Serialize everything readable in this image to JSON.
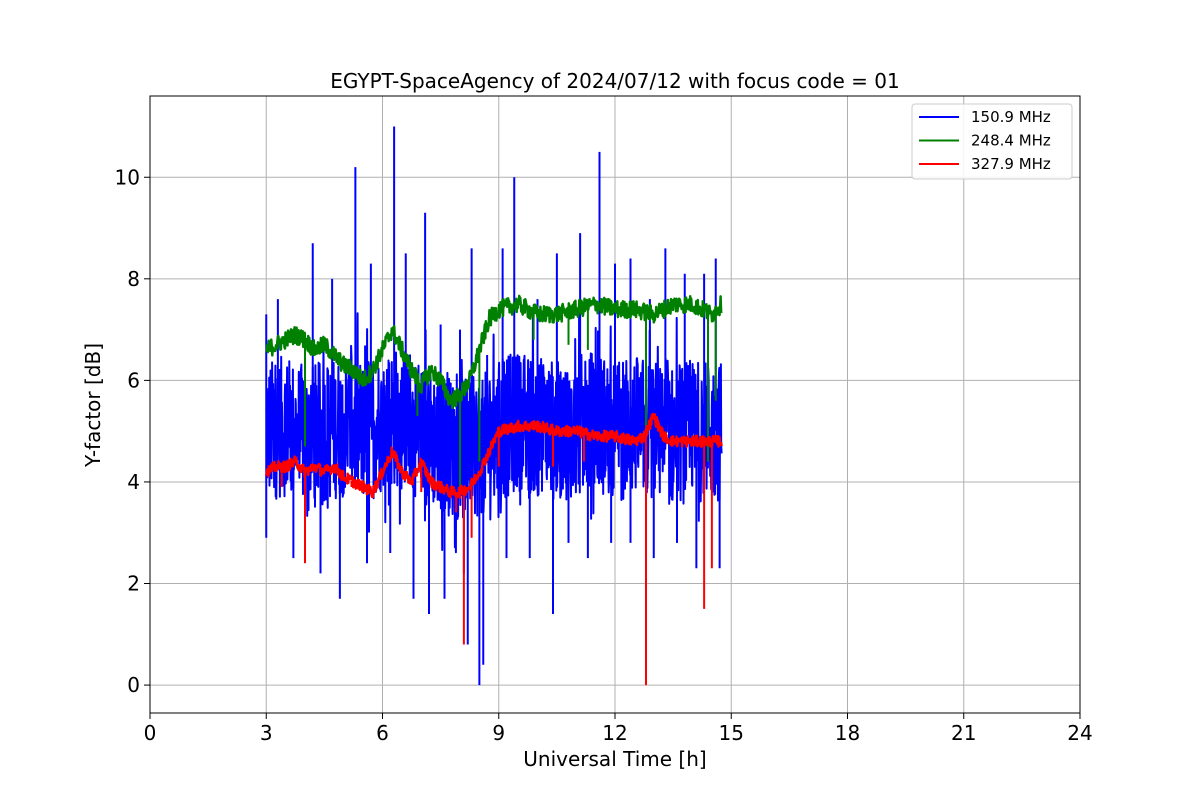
{
  "chart_data": {
    "type": "line",
    "title": "EGYPT-SpaceAgency of 2024/07/12 with focus code = 01",
    "xlabel": "Universal Time [h]",
    "ylabel": "Y-factor [dB]",
    "xlim": [
      0,
      24
    ],
    "ylim": [
      -0.55,
      11.6
    ],
    "xticks": [
      0,
      3,
      6,
      9,
      12,
      15,
      18,
      21,
      24
    ],
    "yticks": [
      0,
      2,
      4,
      6,
      8,
      10
    ],
    "grid": true,
    "legend_position": "top-right",
    "series": [
      {
        "name": "150.9 MHz",
        "color": "#0000ff",
        "x": [
          3.0,
          3.5,
          4.0,
          4.5,
          5.0,
          5.5,
          6.0,
          6.5,
          7.0,
          7.5,
          8.0,
          8.5,
          9.0,
          9.5,
          10.0,
          10.5,
          11.0,
          11.5,
          12.0,
          12.5,
          13.0,
          13.5,
          14.0,
          14.5,
          14.75
        ],
        "y": [
          5.0,
          5.1,
          4.9,
          5.0,
          5.1,
          5.0,
          5.2,
          5.3,
          5.0,
          4.8,
          4.6,
          4.7,
          5.0,
          5.2,
          5.1,
          5.0,
          5.1,
          5.2,
          5.0,
          5.1,
          5.0,
          4.9,
          5.0,
          5.0,
          5.0
        ],
        "spikes_high": [
          [
            3.0,
            7.3
          ],
          [
            3.3,
            7.6
          ],
          [
            4.2,
            8.7
          ],
          [
            4.7,
            8.0
          ],
          [
            5.3,
            10.2
          ],
          [
            5.7,
            8.3
          ],
          [
            6.3,
            11.0
          ],
          [
            6.6,
            8.5
          ],
          [
            7.1,
            9.3
          ],
          [
            7.5,
            7.1
          ],
          [
            8.0,
            7.0
          ],
          [
            8.3,
            8.6
          ],
          [
            8.7,
            6.5
          ],
          [
            9.1,
            8.6
          ],
          [
            9.4,
            10.0
          ],
          [
            10.0,
            7.6
          ],
          [
            10.5,
            8.5
          ],
          [
            11.1,
            8.9
          ],
          [
            11.6,
            10.5
          ],
          [
            12.0,
            8.3
          ],
          [
            12.4,
            8.4
          ],
          [
            12.9,
            7.6
          ],
          [
            13.3,
            8.6
          ],
          [
            13.8,
            8.1
          ],
          [
            14.3,
            8.1
          ],
          [
            14.6,
            8.4
          ]
        ],
        "spikes_low": [
          [
            3.0,
            2.9
          ],
          [
            3.7,
            2.5
          ],
          [
            4.4,
            2.2
          ],
          [
            4.9,
            1.7
          ],
          [
            5.6,
            2.4
          ],
          [
            6.2,
            2.6
          ],
          [
            6.8,
            1.7
          ],
          [
            7.2,
            1.4
          ],
          [
            7.6,
            1.7
          ],
          [
            8.1,
            2.2
          ],
          [
            8.2,
            0.8
          ],
          [
            8.5,
            0.0
          ],
          [
            8.6,
            0.4
          ],
          [
            9.2,
            2.5
          ],
          [
            9.8,
            2.5
          ],
          [
            10.4,
            1.4
          ],
          [
            10.8,
            2.8
          ],
          [
            11.3,
            2.5
          ],
          [
            11.9,
            2.8
          ],
          [
            12.4,
            2.8
          ],
          [
            13.0,
            2.5
          ],
          [
            13.6,
            2.8
          ],
          [
            14.1,
            2.3
          ],
          [
            14.7,
            2.3
          ]
        ]
      },
      {
        "name": "248.4 MHz",
        "color": "#008000",
        "x": [
          3.0,
          3.25,
          3.5,
          3.75,
          4.0,
          4.25,
          4.5,
          4.75,
          5.0,
          5.25,
          5.5,
          5.75,
          6.0,
          6.25,
          6.5,
          6.75,
          7.0,
          7.25,
          7.5,
          7.75,
          8.0,
          8.25,
          8.5,
          8.75,
          9.0,
          9.5,
          10.0,
          10.5,
          11.0,
          11.5,
          12.0,
          12.5,
          13.0,
          13.5,
          14.0,
          14.5,
          14.75
        ],
        "y": [
          6.6,
          6.7,
          6.8,
          6.9,
          6.8,
          6.6,
          6.7,
          6.5,
          6.3,
          6.2,
          6.0,
          6.2,
          6.6,
          7.0,
          6.6,
          6.2,
          5.9,
          6.2,
          6.0,
          5.6,
          5.7,
          6.0,
          6.6,
          7.2,
          7.4,
          7.5,
          7.3,
          7.3,
          7.4,
          7.5,
          7.4,
          7.4,
          7.3,
          7.5,
          7.5,
          7.3,
          7.5
        ],
        "spikes_low": [
          [
            4.0,
            4.7
          ],
          [
            6.9,
            5.3
          ],
          [
            8.0,
            3.9
          ],
          [
            8.5,
            4.4
          ],
          [
            9.9,
            6.8
          ],
          [
            10.8,
            6.7
          ],
          [
            11.3,
            6.6
          ],
          [
            12.8,
            4.8
          ],
          [
            14.4,
            4.4
          ],
          [
            14.6,
            5.6
          ]
        ]
      },
      {
        "name": "327.9 MHz",
        "color": "#ff0000",
        "x": [
          3.0,
          3.25,
          3.5,
          3.75,
          4.0,
          4.25,
          4.5,
          4.75,
          5.0,
          5.25,
          5.5,
          5.75,
          6.0,
          6.25,
          6.5,
          6.75,
          7.0,
          7.25,
          7.5,
          7.75,
          8.0,
          8.25,
          8.5,
          8.75,
          9.0,
          9.5,
          10.0,
          10.5,
          11.0,
          11.5,
          12.0,
          12.5,
          12.75,
          13.0,
          13.25,
          13.5,
          14.0,
          14.5,
          14.75
        ],
        "y": [
          4.2,
          4.3,
          4.3,
          4.4,
          4.2,
          4.3,
          4.2,
          4.3,
          4.1,
          4.0,
          3.9,
          3.8,
          4.2,
          4.6,
          4.2,
          4.0,
          4.4,
          4.0,
          3.9,
          3.8,
          3.8,
          3.9,
          4.2,
          4.6,
          5.0,
          5.1,
          5.1,
          5.0,
          5.0,
          4.9,
          4.9,
          4.8,
          4.9,
          5.3,
          4.9,
          4.8,
          4.8,
          4.8,
          4.8
        ],
        "spikes_low": [
          [
            3.4,
            3.9
          ],
          [
            4.0,
            2.4
          ],
          [
            5.2,
            3.9
          ],
          [
            7.0,
            3.8
          ],
          [
            7.9,
            3.4
          ],
          [
            8.1,
            0.8
          ],
          [
            8.3,
            2.9
          ],
          [
            9.0,
            4.3
          ],
          [
            10.4,
            4.3
          ],
          [
            11.2,
            4.4
          ],
          [
            12.8,
            0.0
          ],
          [
            14.3,
            1.5
          ],
          [
            14.5,
            2.3
          ]
        ]
      }
    ]
  }
}
